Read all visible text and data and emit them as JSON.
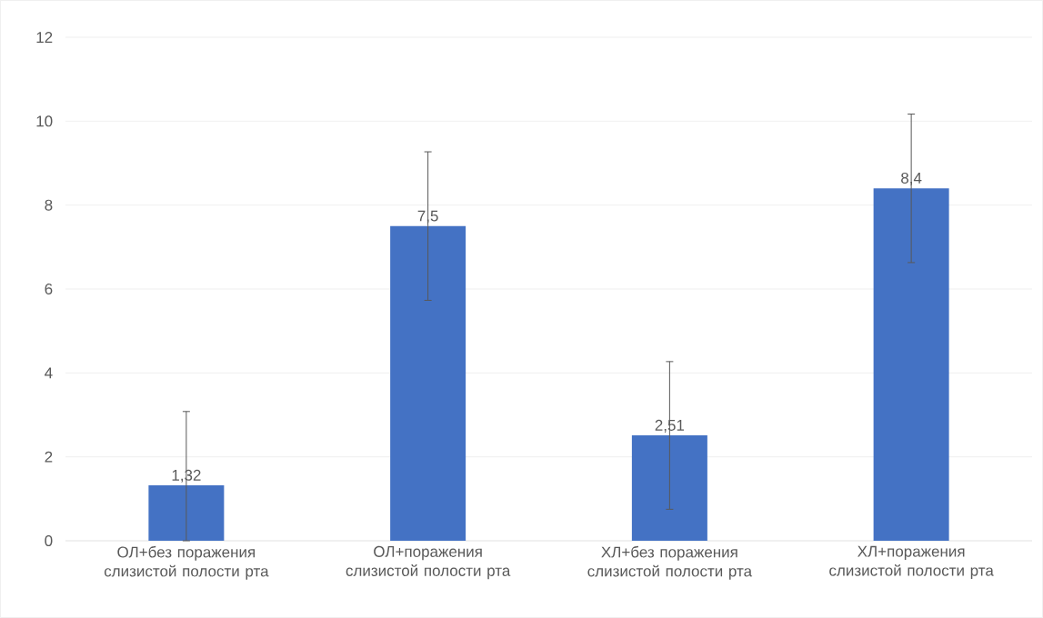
{
  "chart_data": {
    "type": "bar",
    "categories": [
      "ОЛ+без поражения слизистой полости рта",
      "ОЛ+поражения слизистой полости рта",
      "ХЛ+без поражения слизистой полости рта",
      "ХЛ+поражения слизистой полости рта"
    ],
    "values": [
      1.32,
      7.5,
      2.51,
      8.4
    ],
    "value_labels": [
      "1,32",
      "7,5",
      "2,51",
      "8,4"
    ],
    "errors": [
      [
        0,
        3.08
      ],
      [
        5.73,
        9.27
      ],
      [
        0.75,
        4.27
      ],
      [
        6.63,
        10.17
      ]
    ],
    "color": "#4472c4",
    "ylim": [
      0,
      12
    ],
    "yticks": [
      0,
      2,
      4,
      6,
      8,
      10,
      12
    ],
    "grid": "y"
  }
}
